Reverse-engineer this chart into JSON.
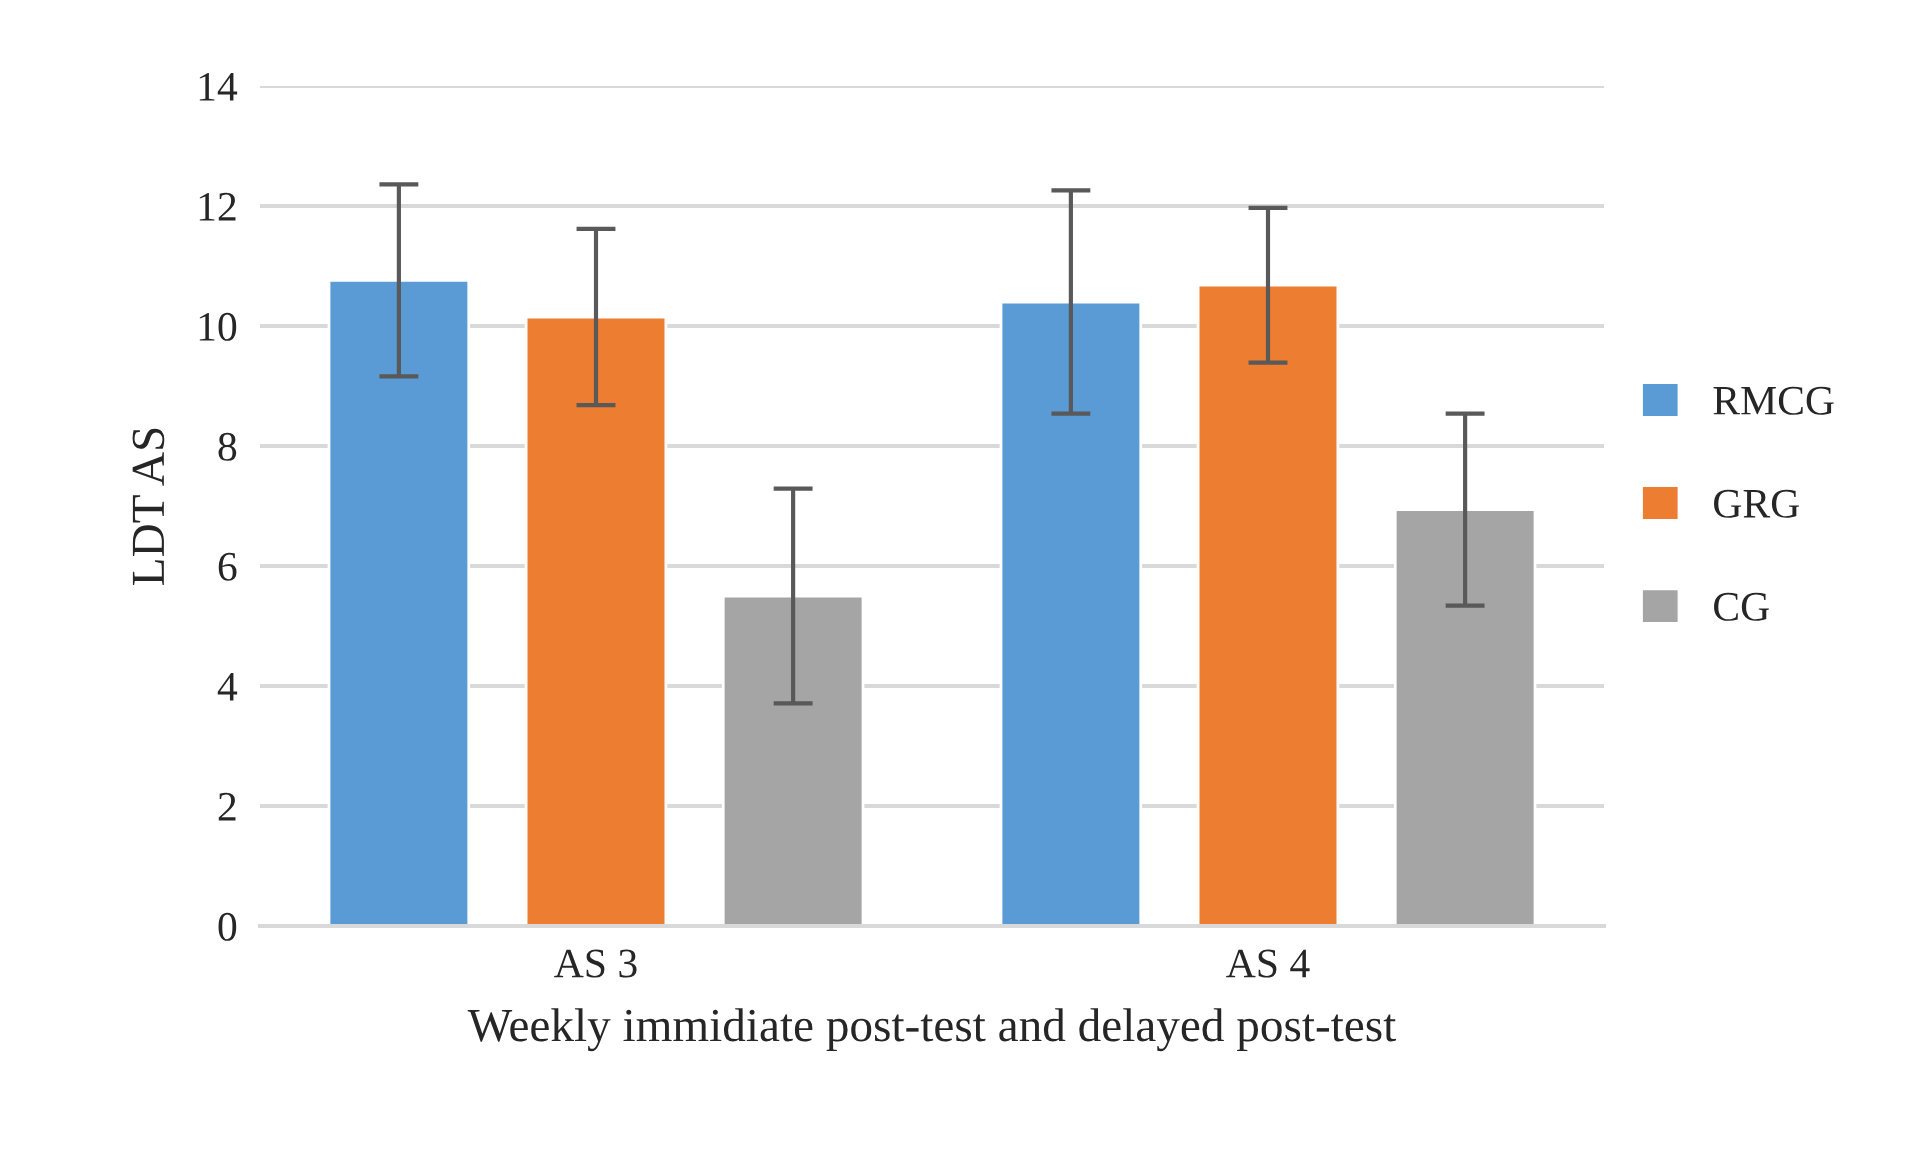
{
  "chart_data": {
    "type": "bar",
    "xlabel": "Weekly immidiate post-test and delayed post-test",
    "ylabel": "LDT AS",
    "categories": [
      "AS 3",
      "AS 4"
    ],
    "series": [
      {
        "name": "RMCG",
        "color": "#5b9bd5",
        "values": [
          10.76,
          10.4
        ],
        "errors": [
          1.6,
          1.86
        ]
      },
      {
        "name": "GRG",
        "color": "#ed7d31",
        "values": [
          10.15,
          10.68
        ],
        "errors": [
          1.47,
          1.29
        ]
      },
      {
        "name": "CG",
        "color": "#a5a5a5",
        "values": [
          5.5,
          6.94
        ],
        "errors": [
          1.79,
          1.6
        ]
      }
    ],
    "ylim": [
      0,
      14
    ],
    "yticks": [
      0,
      2,
      4,
      6,
      8,
      10,
      12,
      14
    ],
    "grid": "y",
    "legend": "right"
  }
}
